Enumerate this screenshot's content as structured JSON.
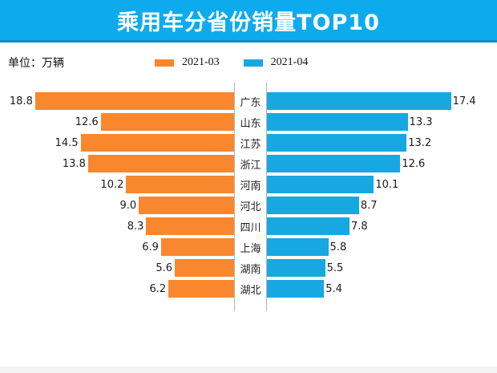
{
  "header": {
    "title": "乘用车分省份销量TOP10"
  },
  "meta": {
    "unit_label": "单位：万辆"
  },
  "legend": [
    {
      "label": "2021-03",
      "color": "#F8872E"
    },
    {
      "label": "2021-04",
      "color": "#17A8E2"
    }
  ],
  "colors": {
    "header_bg": "#0DABEE",
    "header_border": "#0A8CCD",
    "orange": "#F8872E",
    "blue": "#17A8E2",
    "axis_line": "#b5b5b5"
  },
  "chart_data": {
    "type": "bar",
    "orientation": "horizontal-tornado",
    "title": "乘用车分省份销量TOP10",
    "unit": "万辆",
    "categories": [
      "广东",
      "山东",
      "江苏",
      "浙江",
      "河南",
      "河北",
      "四川",
      "上海",
      "湖南",
      "湖北"
    ],
    "series": [
      {
        "name": "2021-03",
        "side": "left",
        "color": "#F8872E",
        "values": [
          18.8,
          12.6,
          14.5,
          13.8,
          10.2,
          9.0,
          8.3,
          6.9,
          5.6,
          6.2
        ]
      },
      {
        "name": "2021-04",
        "side": "right",
        "color": "#17A8E2",
        "values": [
          17.4,
          13.3,
          13.2,
          12.6,
          10.1,
          8.7,
          7.8,
          5.8,
          5.5,
          5.4
        ]
      }
    ],
    "value_labels_shown": true,
    "xlim_each_side": [
      0,
      19
    ],
    "grid": false,
    "legend_position": "top-center"
  }
}
